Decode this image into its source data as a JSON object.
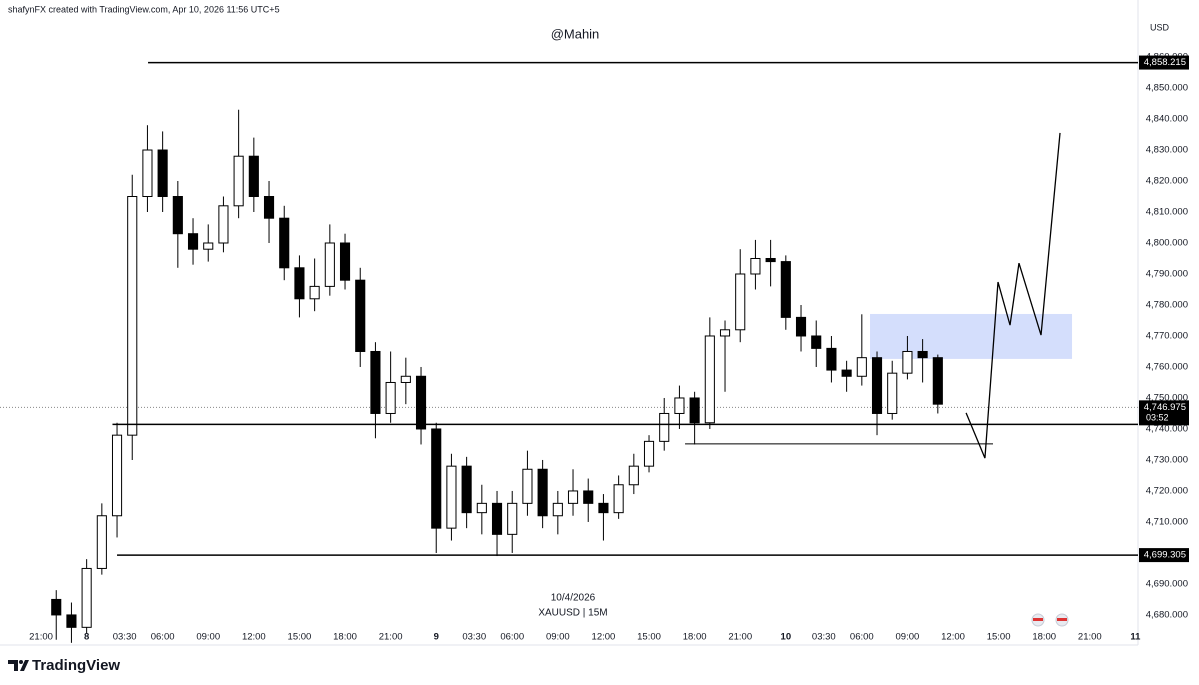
{
  "header": {
    "text": "shafynFX created with TradingView.com, Apr 10, 2026 11:56 UTC+5"
  },
  "chart_data": {
    "type": "candlestick",
    "title": "@Mahin",
    "currency": "USD",
    "date_label": "10/4/2026",
    "symbol": "XAUUSD | 15M",
    "x": [
      1,
      2,
      3,
      4,
      5,
      6,
      7,
      8,
      9,
      10,
      11,
      12,
      13,
      14,
      15,
      16,
      17,
      18,
      19,
      20,
      21,
      22,
      23,
      24,
      25,
      26,
      27,
      28,
      29,
      30,
      31,
      32,
      33,
      34,
      35,
      36,
      37,
      38,
      39,
      40,
      41,
      42,
      43,
      44,
      45,
      46,
      47,
      48,
      49,
      50,
      51,
      52,
      53,
      54,
      55,
      56,
      57,
      58,
      59
    ],
    "open": [
      4685,
      4680,
      4676,
      4695,
      4712,
      4738,
      4815,
      4830,
      4815,
      4803,
      4798,
      4800,
      4812,
      4828,
      4815,
      4808,
      4792,
      4782,
      4786,
      4800,
      4788,
      4765,
      4745,
      4755,
      4757,
      4740,
      4708,
      4728,
      4713,
      4716,
      4706,
      4716,
      4727,
      4712,
      4716,
      4720,
      4716,
      4713,
      4722,
      4728,
      4736,
      4745,
      4750,
      4742,
      4770,
      4772,
      4790,
      4795,
      4794,
      4776,
      4770,
      4766,
      4759,
      4757,
      4763,
      4745,
      4758,
      4765,
      4763
    ],
    "high": [
      4688,
      4684,
      4698,
      4716,
      4742,
      4822,
      4838,
      4836,
      4820,
      4808,
      4806,
      4815,
      4843,
      4834,
      4820,
      4812,
      4796,
      4795,
      4806,
      4803,
      4792,
      4768,
      4765,
      4763,
      4760,
      4742,
      4732,
      4731,
      4722,
      4720,
      4720,
      4733,
      4730,
      4720,
      4727,
      4724,
      4719,
      4725,
      4732,
      4738,
      4750,
      4754,
      4752,
      4776,
      4775,
      4798,
      4801,
      4801,
      4796,
      4780,
      4775,
      4770,
      4762,
      4777,
      4765,
      4762,
      4770,
      4769,
      4764
    ],
    "low": [
      4672,
      4671,
      4674,
      4693,
      4705,
      4730,
      4810,
      4810,
      4792,
      4793,
      4794,
      4797,
      4808,
      4810,
      4800,
      4788,
      4776,
      4778,
      4783,
      4785,
      4760,
      4737,
      4742,
      4748,
      4735,
      4700,
      4704,
      4708,
      4706,
      4699,
      4700,
      4712,
      4708,
      4706,
      4712,
      4710,
      4704,
      4711,
      4719,
      4726,
      4733,
      4740,
      4735,
      4740,
      4752,
      4768,
      4785,
      4786,
      4772,
      4765,
      4760,
      4755,
      4752,
      4754,
      4738,
      4743,
      4756,
      4755,
      4745
    ],
    "close": [
      4680,
      4676,
      4695,
      4712,
      4738,
      4815,
      4830,
      4815,
      4803,
      4798,
      4800,
      4812,
      4828,
      4815,
      4808,
      4792,
      4782,
      4786,
      4800,
      4788,
      4765,
      4745,
      4755,
      4757,
      4740,
      4708,
      4728,
      4713,
      4716,
      4706,
      4716,
      4727,
      4712,
      4716,
      4720,
      4716,
      4713,
      4722,
      4728,
      4736,
      4745,
      4750,
      4742,
      4770,
      4772,
      4790,
      4795,
      4794,
      4776,
      4770,
      4766,
      4759,
      4757,
      4763,
      4745,
      4758,
      4765,
      4763,
      4748
    ],
    "up_color": "#ffffff",
    "down_color": "#000000",
    "xlim": [
      -2.7,
      72.17
    ],
    "xticks": [
      {
        "value": 0,
        "label": "21:00"
      },
      {
        "value": 3,
        "label": "8"
      },
      {
        "value": 5.5,
        "label": "03:30"
      },
      {
        "value": 8,
        "label": "06:00"
      },
      {
        "value": 11,
        "label": "09:00"
      },
      {
        "value": 14,
        "label": "12:00"
      },
      {
        "value": 17,
        "label": "15:00"
      },
      {
        "value": 20,
        "label": "18:00"
      },
      {
        "value": 23,
        "label": "21:00"
      },
      {
        "value": 26,
        "label": "9"
      },
      {
        "value": 28.5,
        "label": "03:30"
      },
      {
        "value": 31,
        "label": "06:00"
      },
      {
        "value": 34,
        "label": "09:00"
      },
      {
        "value": 37,
        "label": "12:00"
      },
      {
        "value": 40,
        "label": "15:00"
      },
      {
        "value": 43,
        "label": "18:00"
      },
      {
        "value": 46,
        "label": "21:00"
      },
      {
        "value": 49,
        "label": "10"
      },
      {
        "value": 51.5,
        "label": "03:30"
      },
      {
        "value": 54,
        "label": "06:00"
      },
      {
        "value": 57,
        "label": "09:00"
      },
      {
        "value": 60,
        "label": "12:00"
      },
      {
        "value": 63,
        "label": "15:00"
      },
      {
        "value": 66,
        "label": "18:00"
      },
      {
        "value": 69,
        "label": "21:00"
      },
      {
        "value": 72,
        "label": "11"
      }
    ],
    "ylim": [
      4670.3,
      4878.4
    ],
    "yticks": [
      {
        "value": 4680,
        "label": "4,680.000"
      },
      {
        "value": 4690,
        "label": "4,690.000"
      },
      {
        "value": 4700,
        "label": "4,700.000"
      },
      {
        "value": 4710,
        "label": "4,710.000"
      },
      {
        "value": 4720,
        "label": "4,720.000"
      },
      {
        "value": 4730,
        "label": "4,730.000"
      },
      {
        "value": 4740,
        "label": "4,740.000"
      },
      {
        "value": 4750,
        "label": "4,750.000"
      },
      {
        "value": 4760,
        "label": "4,760.000"
      },
      {
        "value": 4770,
        "label": "4,770.000"
      },
      {
        "value": 4780,
        "label": "4,780.000"
      },
      {
        "value": 4790,
        "label": "4,790.000"
      },
      {
        "value": 4800,
        "label": "4,800.000"
      },
      {
        "value": 4810,
        "label": "4,810.000"
      },
      {
        "value": 4820,
        "label": "4,820.000"
      },
      {
        "value": 4830,
        "label": "4,830.000"
      },
      {
        "value": 4840,
        "label": "4,840.000"
      },
      {
        "value": 4850,
        "label": "4,850.000"
      },
      {
        "value": 4860,
        "label": "4,860.000"
      }
    ],
    "levels": [
      {
        "value": 4858.215,
        "label": "4,858.215",
        "x_start": 7.04
      },
      {
        "value": 4699.305,
        "label": "4,699.305",
        "x_start": 5.0
      },
      {
        "value": 4741.5,
        "x_start": 4.7
      },
      {
        "value": 4735.2,
        "x_start": 42.37,
        "x_end": 62.63
      }
    ],
    "current_price": {
      "value": 4746.975,
      "label": "4,746.975",
      "countdown": "03:52"
    },
    "zone": {
      "x": [
        54.54,
        67.83
      ],
      "y": [
        4762.6,
        4777.1
      ],
      "color": "#d4defc"
    },
    "projection": {
      "x": [
        60.86,
        62.1,
        62.96,
        63.75,
        64.34,
        65.79,
        67.04
      ],
      "y": [
        4745.2,
        4730.6,
        4787.4,
        4773.5,
        4793.5,
        4770.3,
        4835.5
      ]
    }
  },
  "footer": {
    "brand": "TradingView"
  }
}
